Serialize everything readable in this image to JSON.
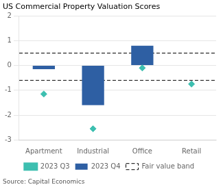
{
  "chart_data": {
    "type": "bar",
    "title": "US Commercial Property Valuation Scores",
    "categories": [
      "Apartment",
      "Industrial",
      "Office",
      "Retail"
    ],
    "series": [
      {
        "name": "2023 Q4",
        "type": "bar",
        "color": "#2e5fa3",
        "values": [
          -0.15,
          -1.6,
          0.8,
          0.0
        ]
      },
      {
        "name": "2023 Q3",
        "type": "scatter",
        "marker": "diamond",
        "color": "#3dbfb0",
        "values": [
          -1.15,
          -2.55,
          -0.1,
          -0.75
        ]
      }
    ],
    "fair_value_band": {
      "name": "Fair value band",
      "upper": 0.5,
      "lower": -0.6,
      "color": "#000000",
      "line_style": "dashed"
    },
    "source": "Source: Capital Economics",
    "ylim": [
      -3,
      2
    ],
    "yticks": [
      -3,
      -2,
      -1,
      0,
      1,
      2
    ],
    "grid": true,
    "legend": "bottom"
  }
}
